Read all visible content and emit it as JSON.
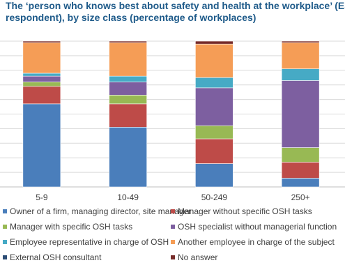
{
  "title_line1": "The ‘person who knows best about safety and health at the workplace’ (ESENER",
  "title_line2": "respondent), by size class (percentage of workplaces)",
  "chart_data": {
    "type": "bar",
    "stacked": true,
    "categories": [
      "5-9",
      "10-49",
      "50-249",
      "250+"
    ],
    "ylim": [
      0,
      100
    ],
    "grid": true,
    "legend_position": "bottom",
    "series": [
      {
        "name": "Owner of a firm, managing director, site manager",
        "color": "#4a7ebb",
        "values": [
          57,
          41,
          16,
          6
        ]
      },
      {
        "name": "Manager without specific OSH tasks",
        "color": "#be4b48",
        "values": [
          12,
          16,
          17,
          11
        ]
      },
      {
        "name": "Manager with specific OSH tasks",
        "color": "#98b954",
        "values": [
          3,
          6,
          9,
          10
        ]
      },
      {
        "name": "OSH specialist without managerial function",
        "color": "#7d5fa0",
        "values": [
          4,
          9,
          26,
          46
        ]
      },
      {
        "name": "Employee representative in charge of OSH",
        "color": "#46aac5",
        "values": [
          2,
          4,
          7,
          8
        ]
      },
      {
        "name": "Another employee in charge of the subject",
        "color": "#f59d56",
        "values": [
          21,
          23,
          23,
          18
        ]
      },
      {
        "name": "External OSH consultant",
        "color": "#2c4d75",
        "values": [
          0,
          0,
          0,
          0
        ]
      },
      {
        "name": "No answer",
        "color": "#772c2a",
        "values": [
          1,
          1,
          2,
          1
        ]
      }
    ]
  }
}
